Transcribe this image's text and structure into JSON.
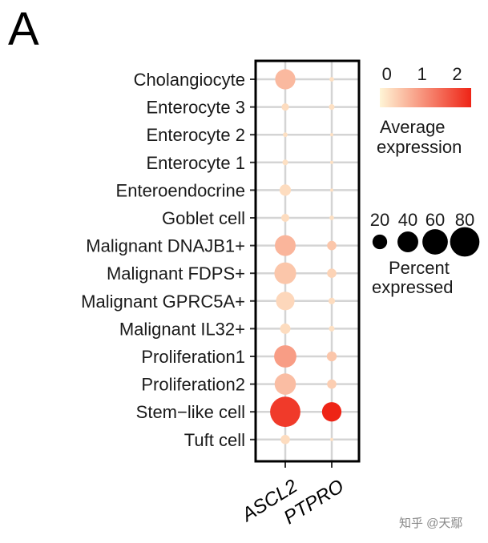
{
  "panel_label": "A",
  "watermark": "知乎 @天鄢",
  "chart_data": {
    "type": "dotplot",
    "categories": [
      "Cholangiocyte",
      "Enterocyte 3",
      "Enterocyte 2",
      "Enterocyte 1",
      "Enteroendocrine",
      "Goblet cell",
      "Malignant DNAJB1+",
      "Malignant FDPS+",
      "Malignant GPRC5A+",
      "Malignant IL32+",
      "Proliferation1",
      "Proliferation2",
      "Stem−like cell",
      "Tuft cell"
    ],
    "genes": [
      "ASCL2",
      "PTPRO"
    ],
    "values": [
      {
        "category": "Cholangiocyte",
        "gene": "ASCL2",
        "avg_expression": 0.45,
        "pct_expressed": 38
      },
      {
        "category": "Cholangiocyte",
        "gene": "PTPRO",
        "avg_expression": 0.0,
        "pct_expressed": 2
      },
      {
        "category": "Enterocyte 3",
        "gene": "ASCL2",
        "avg_expression": 0.05,
        "pct_expressed": 5
      },
      {
        "category": "Enterocyte 3",
        "gene": "PTPRO",
        "avg_expression": 0.0,
        "pct_expressed": 3
      },
      {
        "category": "Enterocyte 2",
        "gene": "ASCL2",
        "avg_expression": 0.0,
        "pct_expressed": 2
      },
      {
        "category": "Enterocyte 2",
        "gene": "PTPRO",
        "avg_expression": 0.0,
        "pct_expressed": 1
      },
      {
        "category": "Enterocyte 1",
        "gene": "ASCL2",
        "avg_expression": 0.0,
        "pct_expressed": 3
      },
      {
        "category": "Enterocyte 1",
        "gene": "PTPRO",
        "avg_expression": 0.0,
        "pct_expressed": 1
      },
      {
        "category": "Enteroendocrine",
        "gene": "ASCL2",
        "avg_expression": 0.05,
        "pct_expressed": 12
      },
      {
        "category": "Enteroendocrine",
        "gene": "PTPRO",
        "avg_expression": 0.0,
        "pct_expressed": 1
      },
      {
        "category": "Goblet cell",
        "gene": "ASCL2",
        "avg_expression": 0.05,
        "pct_expressed": 6
      },
      {
        "category": "Goblet cell",
        "gene": "PTPRO",
        "avg_expression": 0.0,
        "pct_expressed": 2
      },
      {
        "category": "Malignant DNAJB1+",
        "gene": "ASCL2",
        "avg_expression": 0.5,
        "pct_expressed": 40
      },
      {
        "category": "Malignant DNAJB1+",
        "gene": "PTPRO",
        "avg_expression": 0.3,
        "pct_expressed": 8
      },
      {
        "category": "Malignant FDPS+",
        "gene": "ASCL2",
        "avg_expression": 0.3,
        "pct_expressed": 44
      },
      {
        "category": "Malignant FDPS+",
        "gene": "PTPRO",
        "avg_expression": 0.15,
        "pct_expressed": 8
      },
      {
        "category": "Malignant GPRC5A+",
        "gene": "ASCL2",
        "avg_expression": 0.1,
        "pct_expressed": 32
      },
      {
        "category": "Malignant GPRC5A+",
        "gene": "PTPRO",
        "avg_expression": 0.05,
        "pct_expressed": 4
      },
      {
        "category": "Malignant IL32+",
        "gene": "ASCL2",
        "avg_expression": 0.05,
        "pct_expressed": 10
      },
      {
        "category": "Malignant IL32+",
        "gene": "PTPRO",
        "avg_expression": 0.0,
        "pct_expressed": 3
      },
      {
        "category": "Proliferation1",
        "gene": "ASCL2",
        "avg_expression": 0.8,
        "pct_expressed": 46
      },
      {
        "category": "Proliferation1",
        "gene": "PTPRO",
        "avg_expression": 0.3,
        "pct_expressed": 9
      },
      {
        "category": "Proliferation2",
        "gene": "ASCL2",
        "avg_expression": 0.4,
        "pct_expressed": 42
      },
      {
        "category": "Proliferation2",
        "gene": "PTPRO",
        "avg_expression": 0.2,
        "pct_expressed": 8
      },
      {
        "category": "Stem−like cell",
        "gene": "ASCL2",
        "avg_expression": 2.1,
        "pct_expressed": 85
      },
      {
        "category": "Stem−like cell",
        "gene": "PTPRO",
        "avg_expression": 2.4,
        "pct_expressed": 35
      },
      {
        "category": "Tuft cell",
        "gene": "ASCL2",
        "avg_expression": 0.05,
        "pct_expressed": 8
      },
      {
        "category": "Tuft cell",
        "gene": "PTPRO",
        "avg_expression": 0.0,
        "pct_expressed": 1
      }
    ],
    "grid": true,
    "color_legend": {
      "title_lines": [
        "Average",
        "expression"
      ],
      "ticks": [
        "0",
        "1",
        "2"
      ],
      "tick_values": [
        0,
        1,
        2
      ],
      "range": [
        -0.2,
        2.4
      ],
      "color_low": "#fff5d6",
      "color_high": "#ee2416",
      "placement": "top-right"
    },
    "size_legend": {
      "title_lines": [
        "Percent",
        "expressed"
      ],
      "ticks": [
        "20",
        "40",
        "60",
        "80"
      ],
      "tick_values": [
        20,
        40,
        60,
        80
      ],
      "placement": "right"
    }
  }
}
